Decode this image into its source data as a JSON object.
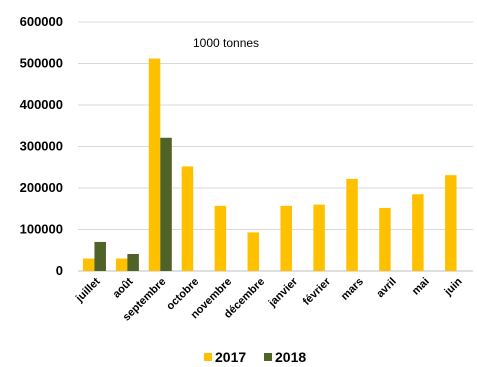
{
  "chart_data": {
    "type": "bar",
    "title": "",
    "xlabel": "",
    "ylabel": "",
    "annotation": "1000 tonnes",
    "ylim": [
      0,
      600000
    ],
    "yticks": [
      0,
      100000,
      200000,
      300000,
      400000,
      500000,
      600000
    ],
    "categories": [
      "juillet",
      "août",
      "septembre",
      "octobre",
      "novembre",
      "décembre",
      "janvier",
      "février",
      "mars",
      "avril",
      "mai",
      "juin"
    ],
    "series": [
      {
        "name": "2017",
        "color": "#FFC000",
        "values": [
          30000,
          30000,
          512000,
          252000,
          157000,
          93000,
          157000,
          160000,
          222000,
          152000,
          185000,
          231000
        ]
      },
      {
        "name": "2018",
        "color": "#4F6228",
        "values": [
          70000,
          41000,
          321000,
          null,
          null,
          null,
          null,
          null,
          null,
          null,
          null,
          null
        ]
      }
    ],
    "grid": true,
    "legend": "bottom"
  }
}
